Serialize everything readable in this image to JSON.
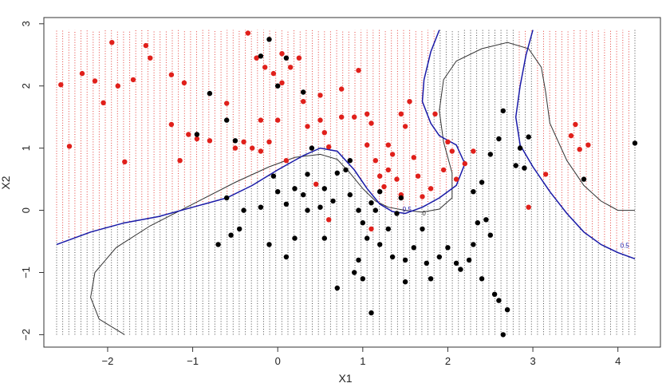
{
  "chart_data": {
    "type": "scatter",
    "title": "",
    "xlabel": "X1",
    "ylabel": "X2",
    "xlim": [
      -2.75,
      4.5
    ],
    "ylim": [
      -2.2,
      3.1
    ],
    "x_ticks": [
      "−2",
      "−1",
      "0",
      "1",
      "2",
      "3",
      "4"
    ],
    "y_ticks": [
      "−2",
      "−1",
      "0",
      "1",
      "2",
      "3"
    ],
    "grid_x_range": [
      -2.6,
      4.2
    ],
    "grid_y_range": [
      -2.0,
      2.9
    ],
    "colors": {
      "red": "#e0201b",
      "black": "#000000",
      "blue": "#1a1aa8",
      "boundary": "#333333"
    },
    "contours": [
      {
        "label": "0",
        "color": "#333333",
        "points": [
          [
            -1.8,
            -2.0
          ],
          [
            -2.1,
            -1.75
          ],
          [
            -2.2,
            -1.4
          ],
          [
            -2.15,
            -1.0
          ],
          [
            -1.9,
            -0.6
          ],
          [
            -1.5,
            -0.25
          ],
          [
            -1.0,
            0.1
          ],
          [
            -0.5,
            0.45
          ],
          [
            -0.1,
            0.7
          ],
          [
            0.2,
            0.85
          ],
          [
            0.5,
            0.9
          ],
          [
            0.7,
            0.82
          ],
          [
            0.85,
            0.6
          ],
          [
            1.0,
            0.35
          ],
          [
            1.15,
            0.15
          ],
          [
            1.3,
            0.05
          ],
          [
            1.5,
            0.0
          ],
          [
            1.7,
            -0.03
          ],
          [
            1.9,
            0.02
          ],
          [
            2.05,
            0.2
          ],
          [
            2.05,
            0.6
          ],
          [
            1.95,
            1.1
          ],
          [
            1.9,
            1.6
          ],
          [
            1.95,
            2.1
          ],
          [
            2.1,
            2.4
          ],
          [
            2.4,
            2.6
          ],
          [
            2.7,
            2.7
          ],
          [
            2.95,
            2.6
          ],
          [
            3.1,
            2.3
          ],
          [
            3.15,
            1.9
          ],
          [
            3.2,
            1.4
          ],
          [
            3.4,
            0.8
          ],
          [
            3.6,
            0.4
          ],
          [
            3.8,
            0.15
          ],
          [
            4.0,
            0.0
          ],
          [
            4.2,
            0.0
          ]
        ]
      },
      {
        "label": "0.5",
        "color": "#1a1aa8",
        "points": [
          [
            -2.6,
            -0.55
          ],
          [
            -2.2,
            -0.35
          ],
          [
            -1.8,
            -0.2
          ],
          [
            -1.4,
            -0.1
          ],
          [
            -1.0,
            0.05
          ],
          [
            -0.6,
            0.2
          ],
          [
            -0.3,
            0.4
          ],
          [
            0.0,
            0.65
          ],
          [
            0.3,
            0.88
          ],
          [
            0.5,
            1.0
          ],
          [
            0.7,
            0.95
          ],
          [
            0.9,
            0.65
          ],
          [
            1.05,
            0.35
          ],
          [
            1.2,
            0.1
          ],
          [
            1.35,
            -0.02
          ],
          [
            1.5,
            -0.05
          ],
          [
            1.7,
            0.05
          ],
          [
            1.9,
            0.2
          ],
          [
            2.1,
            0.4
          ],
          [
            2.2,
            0.75
          ],
          [
            2.1,
            1.05
          ],
          [
            1.9,
            1.2
          ],
          [
            1.8,
            1.4
          ],
          [
            1.7,
            1.75
          ],
          [
            1.72,
            2.1
          ],
          [
            1.8,
            2.55
          ],
          [
            1.9,
            2.9
          ]
        ]
      },
      {
        "label": "0.5",
        "color": "#1a1aa8",
        "points": [
          [
            3.0,
            2.9
          ],
          [
            2.92,
            2.5
          ],
          [
            2.85,
            2.0
          ],
          [
            2.8,
            1.5
          ],
          [
            2.85,
            1.05
          ],
          [
            3.0,
            0.7
          ],
          [
            3.2,
            0.3
          ],
          [
            3.4,
            -0.05
          ],
          [
            3.6,
            -0.35
          ],
          [
            3.8,
            -0.55
          ],
          [
            4.0,
            -0.68
          ],
          [
            4.2,
            -0.78
          ]
        ]
      }
    ],
    "series": [
      {
        "name": "",
        "color": "#e0201b",
        "points": [
          [
            -2.55,
            2.02
          ],
          [
            -2.45,
            1.03
          ],
          [
            -2.3,
            2.2
          ],
          [
            -2.15,
            2.08
          ],
          [
            -2.05,
            1.73
          ],
          [
            -1.95,
            2.7
          ],
          [
            -1.88,
            2.0
          ],
          [
            -1.7,
            2.1
          ],
          [
            -1.8,
            0.78
          ],
          [
            -1.55,
            2.65
          ],
          [
            -1.5,
            2.45
          ],
          [
            -1.25,
            2.18
          ],
          [
            -1.25,
            1.38
          ],
          [
            -1.1,
            2.05
          ],
          [
            -1.15,
            0.8
          ],
          [
            -1.05,
            1.22
          ],
          [
            -0.95,
            1.15
          ],
          [
            -0.8,
            1.12
          ],
          [
            -0.6,
            1.72
          ],
          [
            -0.5,
            1.0
          ],
          [
            -0.4,
            1.1
          ],
          [
            -0.3,
            1.0
          ],
          [
            -0.35,
            2.85
          ],
          [
            -0.25,
            2.45
          ],
          [
            -0.2,
            1.45
          ],
          [
            -0.15,
            2.3
          ],
          [
            -0.05,
            2.2
          ],
          [
            -0.1,
            1.1
          ],
          [
            -0.2,
            0.95
          ],
          [
            0.0,
            1.45
          ],
          [
            0.05,
            2.05
          ],
          [
            0.05,
            2.52
          ],
          [
            0.15,
            2.3
          ],
          [
            0.25,
            2.45
          ],
          [
            0.3,
            1.75
          ],
          [
            0.35,
            1.35
          ],
          [
            0.5,
            1.85
          ],
          [
            0.5,
            1.45
          ],
          [
            0.55,
            1.25
          ],
          [
            0.6,
            1.02
          ],
          [
            0.75,
            1.95
          ],
          [
            0.75,
            1.5
          ],
          [
            0.9,
            1.5
          ],
          [
            0.95,
            2.25
          ],
          [
            1.05,
            1.55
          ],
          [
            1.05,
            1.05
          ],
          [
            1.1,
            1.4
          ],
          [
            1.15,
            0.8
          ],
          [
            1.2,
            0.55
          ],
          [
            1.25,
            0.38
          ],
          [
            1.3,
            1.05
          ],
          [
            1.3,
            0.65
          ],
          [
            1.35,
            0.9
          ],
          [
            1.4,
            0.5
          ],
          [
            1.45,
            0.25
          ],
          [
            1.45,
            1.55
          ],
          [
            1.5,
            1.35
          ],
          [
            1.55,
            1.75
          ],
          [
            1.6,
            0.85
          ],
          [
            1.65,
            0.55
          ],
          [
            1.7,
            0.22
          ],
          [
            1.8,
            0.35
          ],
          [
            1.85,
            1.55
          ],
          [
            1.95,
            0.65
          ],
          [
            2.0,
            1.1
          ],
          [
            2.05,
            0.95
          ],
          [
            2.1,
            0.5
          ],
          [
            2.2,
            0.75
          ],
          [
            2.3,
            0.95
          ],
          [
            3.15,
            0.58
          ],
          [
            3.45,
            1.2
          ],
          [
            3.5,
            1.38
          ],
          [
            3.55,
            0.98
          ],
          [
            3.65,
            1.05
          ],
          [
            2.95,
            0.05
          ],
          [
            0.1,
            0.8
          ],
          [
            0.45,
            0.42
          ],
          [
            1.1,
            -0.3
          ],
          [
            0.6,
            -0.15
          ]
        ]
      },
      {
        "name": "",
        "color": "#000000",
        "points": [
          [
            -0.95,
            1.22
          ],
          [
            -0.8,
            1.88
          ],
          [
            -0.6,
            1.45
          ],
          [
            -0.5,
            1.12
          ],
          [
            -0.2,
            2.48
          ],
          [
            -0.1,
            2.75
          ],
          [
            0.1,
            2.45
          ],
          [
            0.0,
            2.0
          ],
          [
            0.3,
            1.9
          ],
          [
            0.4,
            1.0
          ],
          [
            0.35,
            0.58
          ],
          [
            0.2,
            0.35
          ],
          [
            0.3,
            0.25
          ],
          [
            0.35,
            0.0
          ],
          [
            0.5,
            0.05
          ],
          [
            0.55,
            0.35
          ],
          [
            0.7,
            0.6
          ],
          [
            0.85,
            0.25
          ],
          [
            0.95,
            0.0
          ],
          [
            1.0,
            -0.2
          ],
          [
            1.05,
            -0.45
          ],
          [
            1.1,
            0.12
          ],
          [
            1.2,
            -0.55
          ],
          [
            1.3,
            -0.3
          ],
          [
            1.35,
            -0.75
          ],
          [
            1.4,
            -0.05
          ],
          [
            1.45,
            0.2
          ],
          [
            1.5,
            -0.8
          ],
          [
            1.6,
            -0.6
          ],
          [
            1.7,
            -0.3
          ],
          [
            1.75,
            -0.85
          ],
          [
            1.8,
            -1.1
          ],
          [
            1.9,
            -0.75
          ],
          [
            2.0,
            -0.6
          ],
          [
            2.1,
            -0.85
          ],
          [
            2.15,
            -0.95
          ],
          [
            2.3,
            -0.55
          ],
          [
            2.35,
            -0.2
          ],
          [
            2.45,
            -0.15
          ],
          [
            2.5,
            -0.4
          ],
          [
            2.55,
            -1.35
          ],
          [
            2.6,
            -1.45
          ],
          [
            2.7,
            -1.6
          ],
          [
            2.65,
            -2.0
          ],
          [
            2.4,
            -1.1
          ],
          [
            2.25,
            -0.8
          ],
          [
            2.3,
            0.3
          ],
          [
            2.4,
            0.45
          ],
          [
            2.5,
            0.9
          ],
          [
            2.6,
            1.15
          ],
          [
            2.65,
            1.6
          ],
          [
            2.8,
            0.72
          ],
          [
            2.85,
            1.0
          ],
          [
            2.9,
            0.68
          ],
          [
            2.95,
            1.18
          ],
          [
            3.6,
            0.5
          ],
          [
            4.2,
            1.08
          ],
          [
            -0.45,
            -0.3
          ],
          [
            -0.55,
            -0.4
          ],
          [
            -0.7,
            -0.55
          ],
          [
            -0.6,
            0.2
          ],
          [
            -0.4,
            0.0
          ],
          [
            -0.2,
            0.05
          ],
          [
            -0.1,
            -0.55
          ],
          [
            0.1,
            -0.75
          ],
          [
            0.2,
            -0.45
          ],
          [
            0.55,
            -0.45
          ],
          [
            0.7,
            -1.25
          ],
          [
            0.9,
            -1.0
          ],
          [
            0.95,
            -0.8
          ],
          [
            1.0,
            -1.1
          ],
          [
            1.1,
            -1.65
          ],
          [
            1.5,
            -1.15
          ],
          [
            0.0,
            0.3
          ],
          [
            0.1,
            0.1
          ],
          [
            0.65,
            0.15
          ],
          [
            0.8,
            0.65
          ],
          [
            0.85,
            0.8
          ],
          [
            -0.05,
            0.55
          ],
          [
            1.15,
            0.0
          ],
          [
            1.2,
            0.3
          ]
        ]
      }
    ]
  }
}
